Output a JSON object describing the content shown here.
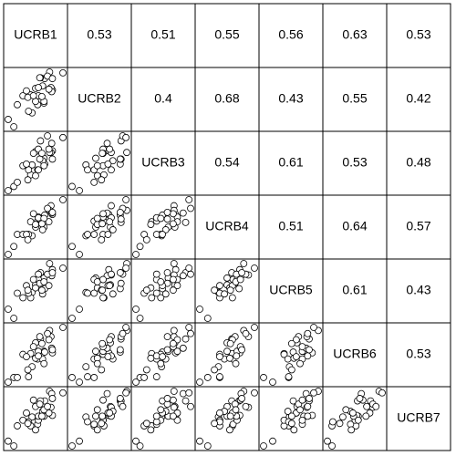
{
  "chart_data": {
    "type": "scatter-matrix",
    "variables": [
      {
        "name": "UCRB1",
        "values": [
          0.15,
          0.2,
          0.41,
          0.39,
          0.58,
          0.46,
          0.59,
          0.7,
          0.53,
          0.49,
          0.28,
          0.36,
          0.68,
          0.66,
          0.56,
          0.5,
          0.46,
          0.52,
          0.69,
          0.5,
          0.33,
          0.65,
          0.58,
          0.63,
          0.35,
          0.43,
          0.55,
          0.7,
          0.85,
          0.07
        ]
      },
      {
        "name": "UCRB2",
        "values": [
          0.08,
          0.35,
          0.25,
          0.47,
          0.37,
          0.55,
          0.67,
          0.53,
          0.68,
          0.35,
          0.46,
          0.27,
          0.56,
          0.75,
          0.58,
          0.46,
          0.39,
          0.68,
          0.51,
          0.56,
          0.52,
          0.54,
          0.39,
          0.7,
          0.44,
          0.46,
          0.45,
          0.67,
          0.74,
          0.17
        ]
      },
      {
        "name": "UCRB3",
        "values": [
          0.18,
          0.23,
          0.44,
          0.32,
          0.52,
          0.6,
          0.45,
          0.61,
          0.73,
          0.38,
          0.43,
          0.38,
          0.59,
          0.59,
          0.49,
          0.63,
          0.31,
          0.51,
          0.7,
          0.38,
          0.45,
          0.63,
          0.43,
          0.79,
          0.26,
          0.58,
          0.58,
          0.51,
          0.77,
          0.13
        ]
      },
      {
        "name": "UCRB4",
        "values": [
          0.14,
          0.32,
          0.3,
          0.51,
          0.43,
          0.43,
          0.61,
          0.62,
          0.5,
          0.52,
          0.32,
          0.32,
          0.75,
          0.68,
          0.39,
          0.58,
          0.47,
          0.55,
          0.64,
          0.57,
          0.32,
          0.51,
          0.56,
          0.71,
          0.24,
          0.63,
          0.48,
          0.65,
          0.84,
          0.02
        ]
      },
      {
        "name": "UCRB5",
        "values": [
          0.04,
          0.37,
          0.38,
          0.31,
          0.57,
          0.48,
          0.43,
          0.68,
          0.64,
          0.55,
          0.31,
          0.37,
          0.61,
          0.76,
          0.36,
          0.55,
          0.44,
          0.5,
          0.6,
          0.62,
          0.47,
          0.47,
          0.52,
          0.62,
          0.41,
          0.55,
          0.41,
          0.64,
          0.7,
          0.16
        ]
      },
      {
        "name": "UCRB6",
        "values": [
          0.17,
          0.17,
          0.31,
          0.48,
          0.51,
          0.62,
          0.5,
          0.49,
          0.67,
          0.41,
          0.47,
          0.18,
          0.7,
          0.78,
          0.41,
          0.51,
          0.42,
          0.7,
          0.55,
          0.45,
          0.44,
          0.66,
          0.35,
          0.74,
          0.27,
          0.57,
          0.61,
          0.53,
          0.82,
          0.11
        ]
      },
      {
        "name": "UCRB7",
        "values": [
          0.09,
          0.34,
          0.45,
          0.34,
          0.46,
          0.58,
          0.65,
          0.47,
          0.65,
          0.36,
          0.41,
          0.39,
          0.57,
          0.77,
          0.52,
          0.41,
          0.29,
          0.61,
          0.74,
          0.46,
          0.5,
          0.5,
          0.54,
          0.58,
          0.37,
          0.66,
          0.46,
          0.68,
          0.75,
          0.15
        ]
      }
    ],
    "correlations": [
      [
        0.53,
        0.51,
        0.55,
        0.56,
        0.63,
        0.53
      ],
      [
        0.4,
        0.68,
        0.43,
        0.55,
        0.42
      ],
      [
        0.54,
        0.61,
        0.53,
        0.48
      ],
      [
        0.51,
        0.64,
        0.57
      ],
      [
        0.61,
        0.43
      ],
      [
        0.53
      ]
    ]
  }
}
